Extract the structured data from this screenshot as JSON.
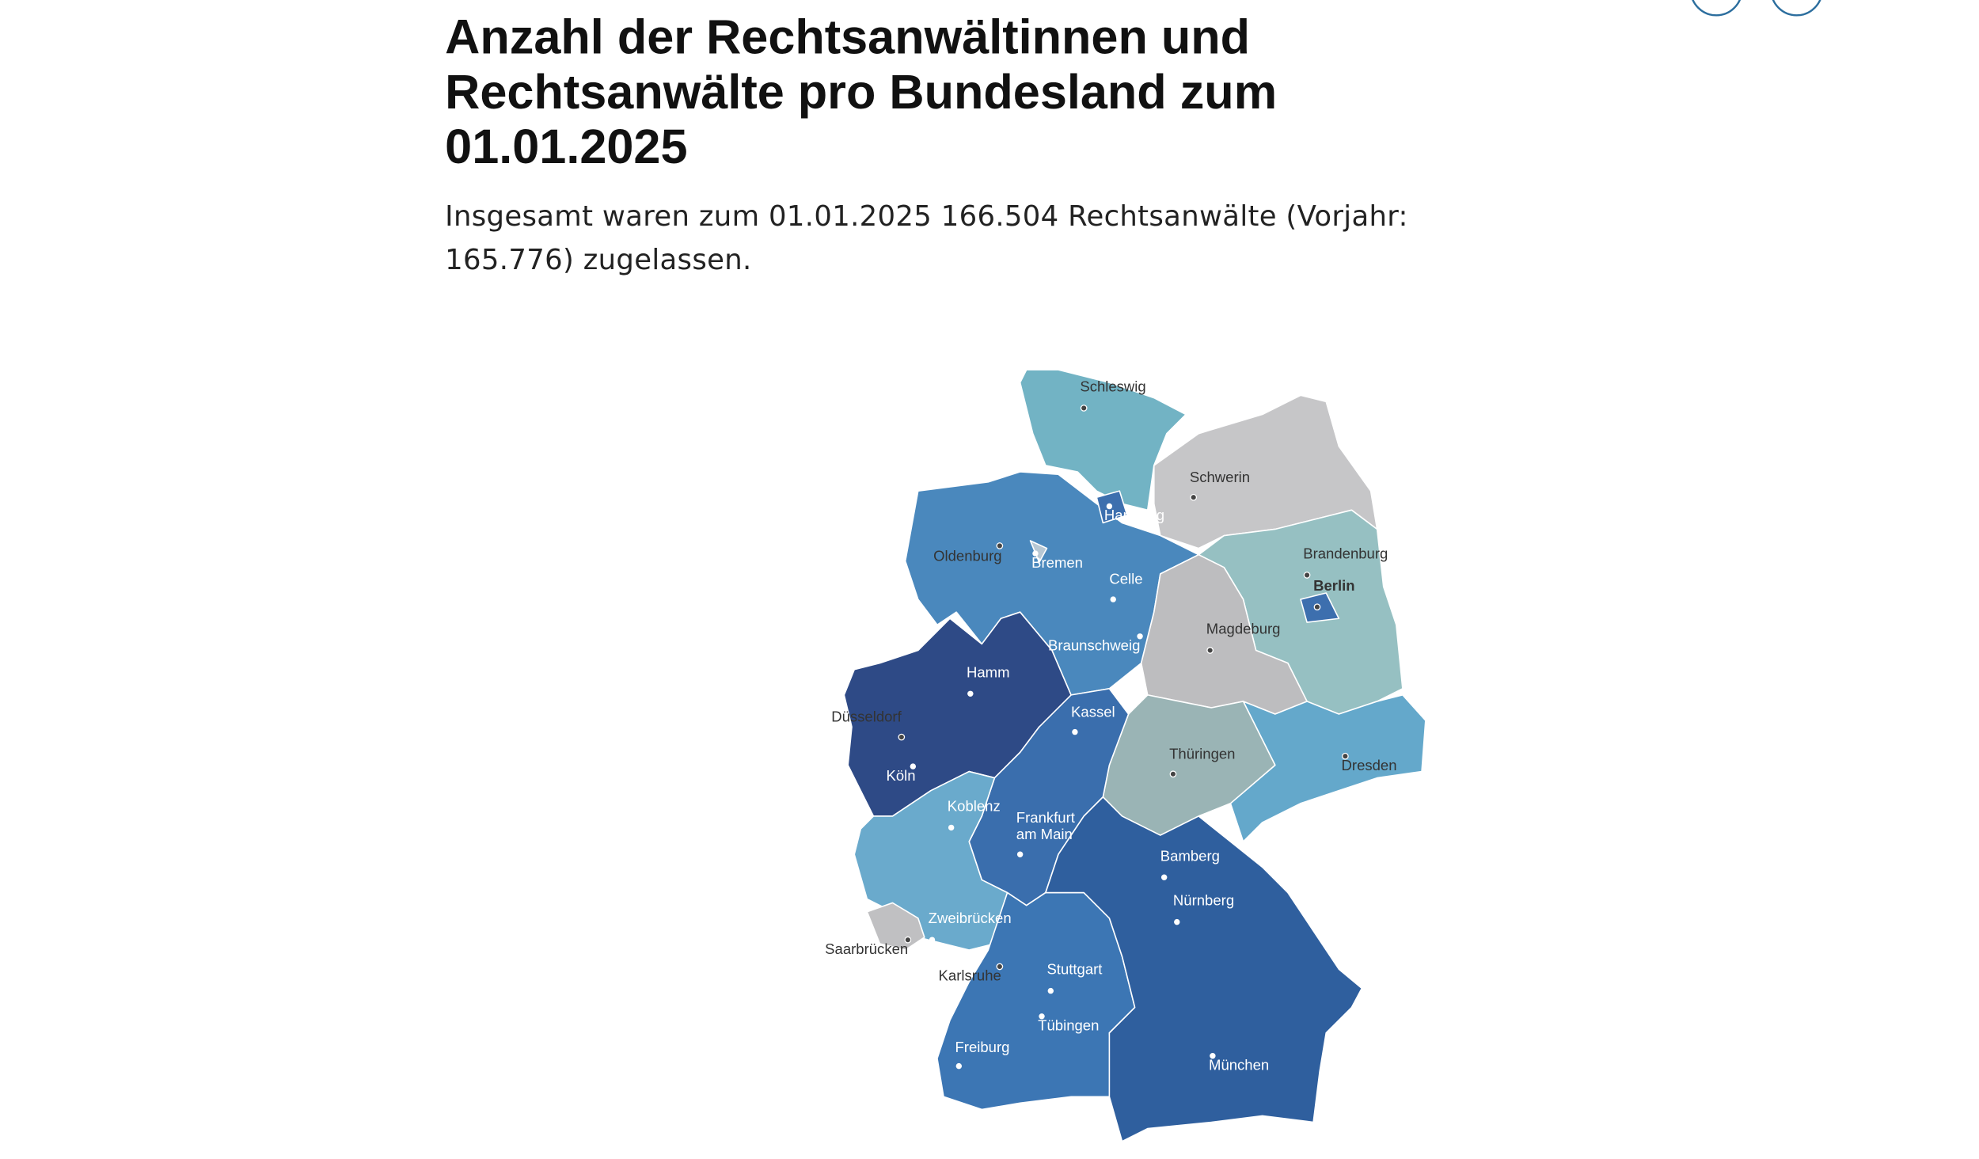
{
  "header": {
    "title": "Anzahl der Rechtsanwältinnen und Rechtsanwälte pro Bundesland zum 01.01.2025",
    "subtitle": "Insgesamt waren zum 01.01.2025 166.504 Rechtsanwälte (Vorjahr: 165.776) zugelassen."
  },
  "map": {
    "cities": [
      "Schleswig",
      "Schwerin",
      "Hamburg",
      "Oldenburg",
      "Bremen",
      "Brandenburg",
      "Berlin",
      "Celle",
      "Magdeburg",
      "Braunschweig",
      "Hamm",
      "Düsseldorf",
      "Kassel",
      "Köln",
      "Thüringen",
      "Dresden",
      "Koblenz",
      "Frankfurt am Main",
      "Bamberg",
      "Nürnberg",
      "Zweibrücken",
      "Saarbrücken",
      "Karlsruhe",
      "Stuttgart",
      "Tübingen",
      "Freiburg",
      "München"
    ]
  }
}
